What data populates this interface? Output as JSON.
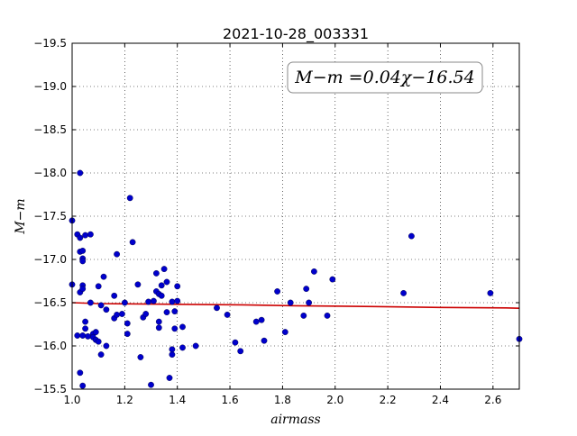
{
  "chart_data": {
    "type": "scatter",
    "title": "2021-10-28_003331",
    "xlabel": "airmass",
    "ylabel": "M−m",
    "xlim": [
      1.0,
      2.7
    ],
    "ylim": [
      -19.5,
      -15.5
    ],
    "invert_y": true,
    "grid": true,
    "x_ticks": [
      "1.0",
      "1.2",
      "1.4",
      "1.6",
      "1.8",
      "2.0",
      "2.2",
      "2.4",
      "2.6"
    ],
    "y_ticks": [
      "−15.5",
      "−16.0",
      "−16.5",
      "−17.0",
      "−17.5",
      "−18.0",
      "−18.5",
      "−19.0",
      "−19.5"
    ],
    "annotation": "M−m =0.04χ−16.54",
    "colors": {
      "points": "#0000cc",
      "fit": "#cc0000"
    },
    "fit": {
      "slope": 0.04,
      "intercept": -16.54,
      "x": [
        1.0,
        1.1,
        1.65,
        1.75,
        1.85,
        2.15,
        2.4,
        2.65,
        2.7
      ],
      "y": [
        -16.5,
        -16.49,
        -16.475,
        -16.47,
        -16.465,
        -16.455,
        -16.445,
        -16.44,
        -16.435
      ]
    },
    "points": [
      [
        1.0,
        -16.71
      ],
      [
        1.0,
        -17.45
      ],
      [
        1.02,
        -16.12
      ],
      [
        1.02,
        -17.29
      ],
      [
        1.03,
        -16.62
      ],
      [
        1.03,
        -17.09
      ],
      [
        1.03,
        -17.25
      ],
      [
        1.03,
        -18.0
      ],
      [
        1.03,
        -15.69
      ],
      [
        1.04,
        -15.54
      ],
      [
        1.04,
        -16.7
      ],
      [
        1.04,
        -16.66
      ],
      [
        1.04,
        -16.12
      ],
      [
        1.04,
        -17.1
      ],
      [
        1.04,
        -17.01
      ],
      [
        1.04,
        -16.98
      ],
      [
        1.05,
        -16.2
      ],
      [
        1.05,
        -16.28
      ],
      [
        1.05,
        -17.28
      ],
      [
        1.06,
        -16.11
      ],
      [
        1.07,
        -16.5
      ],
      [
        1.07,
        -17.29
      ],
      [
        1.08,
        -16.14
      ],
      [
        1.08,
        -16.1
      ],
      [
        1.09,
        -16.16
      ],
      [
        1.09,
        -16.07
      ],
      [
        1.1,
        -16.05
      ],
      [
        1.1,
        -16.69
      ],
      [
        1.11,
        -15.9
      ],
      [
        1.11,
        -16.47
      ],
      [
        1.12,
        -16.8
      ],
      [
        1.13,
        -16.0
      ],
      [
        1.13,
        -16.42
      ],
      [
        1.16,
        -16.32
      ],
      [
        1.16,
        -16.58
      ],
      [
        1.17,
        -16.36
      ],
      [
        1.17,
        -17.06
      ],
      [
        1.19,
        -16.37
      ],
      [
        1.2,
        -16.5
      ],
      [
        1.21,
        -16.14
      ],
      [
        1.21,
        -16.26
      ],
      [
        1.22,
        -17.71
      ],
      [
        1.23,
        -17.2
      ],
      [
        1.25,
        -16.71
      ],
      [
        1.26,
        -15.87
      ],
      [
        1.27,
        -16.33
      ],
      [
        1.28,
        -16.37
      ],
      [
        1.29,
        -16.51
      ],
      [
        1.3,
        -15.55
      ],
      [
        1.31,
        -16.52
      ],
      [
        1.32,
        -16.63
      ],
      [
        1.32,
        -16.84
      ],
      [
        1.33,
        -16.6
      ],
      [
        1.33,
        -16.28
      ],
      [
        1.33,
        -16.21
      ],
      [
        1.34,
        -16.58
      ],
      [
        1.34,
        -16.7
      ],
      [
        1.35,
        -16.89
      ],
      [
        1.36,
        -16.39
      ],
      [
        1.36,
        -16.74
      ],
      [
        1.37,
        -15.63
      ],
      [
        1.38,
        -15.9
      ],
      [
        1.38,
        -15.96
      ],
      [
        1.38,
        -16.51
      ],
      [
        1.39,
        -16.4
      ],
      [
        1.39,
        -16.2
      ],
      [
        1.4,
        -16.52
      ],
      [
        1.4,
        -16.69
      ],
      [
        1.42,
        -16.22
      ],
      [
        1.42,
        -15.98
      ],
      [
        1.47,
        -16.0
      ],
      [
        1.55,
        -16.44
      ],
      [
        1.59,
        -16.36
      ],
      [
        1.62,
        -16.04
      ],
      [
        1.64,
        -15.94
      ],
      [
        1.7,
        -16.28
      ],
      [
        1.72,
        -16.3
      ],
      [
        1.73,
        -16.06
      ],
      [
        1.78,
        -16.63
      ],
      [
        1.81,
        -16.16
      ],
      [
        1.83,
        -16.5
      ],
      [
        1.88,
        -16.35
      ],
      [
        1.89,
        -16.66
      ],
      [
        1.9,
        -16.5
      ],
      [
        1.92,
        -16.86
      ],
      [
        1.97,
        -16.35
      ],
      [
        1.99,
        -16.77
      ],
      [
        2.26,
        -16.61
      ],
      [
        2.29,
        -17.27
      ],
      [
        2.59,
        -16.61
      ],
      [
        2.7,
        -16.08
      ]
    ]
  }
}
